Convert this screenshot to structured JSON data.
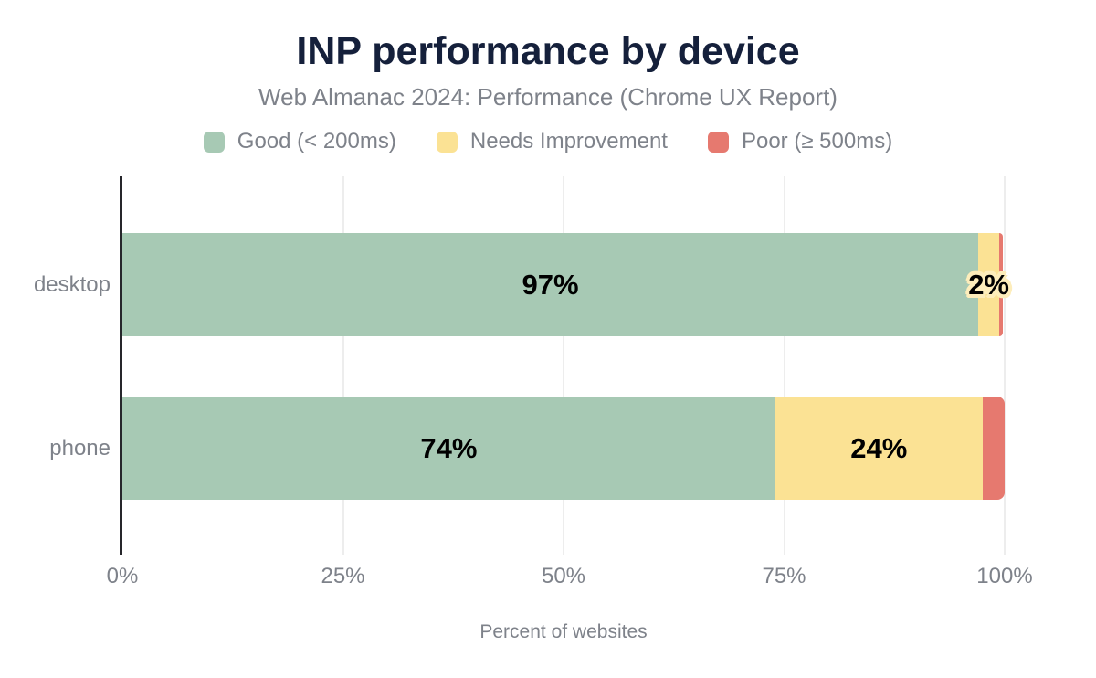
{
  "header": {
    "title": "INP performance by device",
    "subtitle": "Web Almanac 2024: Performance (Chrome UX Report)"
  },
  "colors": {
    "title_navy": "#15203b",
    "muted_text": "#7e828a",
    "axis_line": "#26262b",
    "gridline": "#ededed",
    "good": "#a7c9b4",
    "needs_improvement": "#fbe294",
    "poor": "#e6796f",
    "value_label_halo": "#fdedbb"
  },
  "chart_data": {
    "type": "bar",
    "orientation": "horizontal",
    "stacked": true,
    "title": "INP performance by device",
    "subtitle": "Web Almanac 2024: Performance (Chrome UX Report)",
    "xlabel": "Percent of websites",
    "ylabel": "",
    "xlim": [
      0,
      100
    ],
    "x_ticks": [
      "0%",
      "25%",
      "50%",
      "75%",
      "100%"
    ],
    "grid": "vertical",
    "legend_position": "top",
    "categories": [
      "desktop",
      "phone"
    ],
    "series": [
      {
        "name": "Good (< 200ms)",
        "color": "#a7c9b4",
        "values": [
          97,
          74
        ],
        "value_labels": [
          "97%",
          "74%"
        ]
      },
      {
        "name": "Needs Improvement",
        "color": "#fbe294",
        "values": [
          2.4,
          23.5
        ],
        "value_labels": [
          "2%",
          "24%"
        ]
      },
      {
        "name": "Poor (≥ 500ms)",
        "color": "#e6796f",
        "values": [
          0.4,
          2.5
        ],
        "value_labels": [
          "",
          ""
        ]
      }
    ]
  }
}
